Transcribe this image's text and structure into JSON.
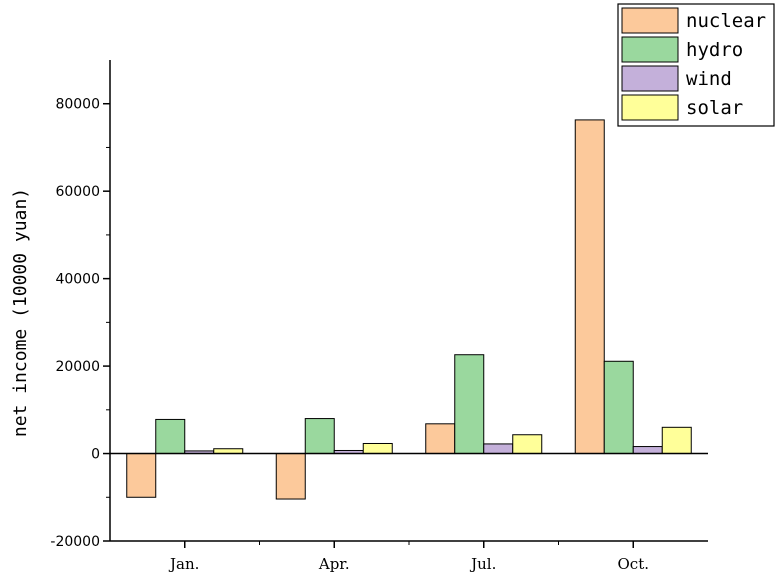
{
  "chart_data": {
    "type": "bar",
    "title": "",
    "xlabel": "",
    "ylabel": "net income (10000 yuan)",
    "categories": [
      "Jan.",
      "Apr.",
      "Jul.",
      "Oct."
    ],
    "ylim": [
      -20000,
      90000
    ],
    "yticks": [
      -20000,
      0,
      20000,
      40000,
      60000,
      80000
    ],
    "grid": false,
    "legend_position": "top-right",
    "series": [
      {
        "name": "nuclear",
        "color": "#FCC99B",
        "values": [
          -10000,
          -10400,
          6800,
          76300
        ]
      },
      {
        "name": "hydro",
        "color": "#9AD89E",
        "values": [
          7800,
          8000,
          22600,
          21100
        ]
      },
      {
        "name": "wind",
        "color": "#C4B0DA",
        "values": [
          600,
          700,
          2200,
          1600
        ]
      },
      {
        "name": "solar",
        "color": "#FFFF99",
        "values": [
          1100,
          2300,
          4300,
          6000
        ]
      }
    ]
  }
}
